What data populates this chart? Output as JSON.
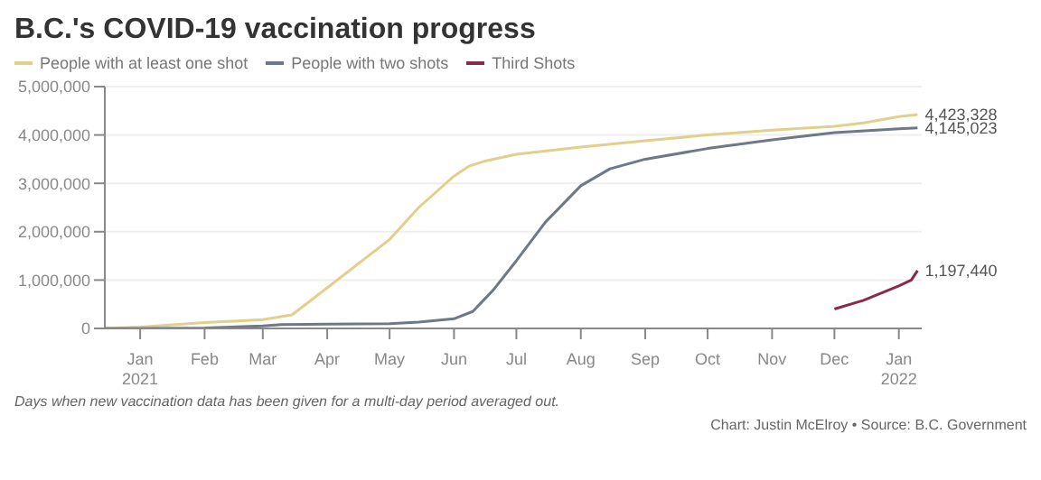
{
  "chart_data": {
    "type": "line",
    "title": "B.C.'s COVID-19 vaccination progress",
    "legend": "top left",
    "grid": "y",
    "marker": "none",
    "line_style": "solid",
    "xlim": [
      "2020-12-15",
      "2022-01-12"
    ],
    "xticks": [
      {
        "value": "2021-01-01",
        "label": "Jan\n2021"
      },
      {
        "value": "2021-02-01",
        "label": "Feb"
      },
      {
        "value": "2021-03-01",
        "label": "Mar"
      },
      {
        "value": "2021-04-01",
        "label": "Apr"
      },
      {
        "value": "2021-05-01",
        "label": "May"
      },
      {
        "value": "2021-06-01",
        "label": "Jun"
      },
      {
        "value": "2021-07-01",
        "label": "Jul"
      },
      {
        "value": "2021-08-01",
        "label": "Aug"
      },
      {
        "value": "2021-09-01",
        "label": "Sep"
      },
      {
        "value": "2021-10-01",
        "label": "Oct"
      },
      {
        "value": "2021-11-01",
        "label": "Nov"
      },
      {
        "value": "2021-12-01",
        "label": "Dec"
      },
      {
        "value": "2022-01-01",
        "label": "Jan\n2022"
      }
    ],
    "ylim": [
      0,
      5000000
    ],
    "yticks": [
      0,
      {
        "value": 1000000,
        "label": "1,000,000"
      },
      {
        "value": 2000000,
        "label": "2,000,000"
      },
      {
        "value": 3000000,
        "label": "3,000,000"
      },
      {
        "value": 4000000,
        "label": "4,000,000"
      },
      {
        "value": 5000000,
        "label": "5,000,000"
      }
    ],
    "series": [
      {
        "name": "People with at least one shot",
        "color": "#e3cf8c",
        "x": [
          "2020-12-15",
          "2021-01-01",
          "2021-02-01",
          "2021-03-01",
          "2021-03-15",
          "2021-04-01",
          "2021-05-01",
          "2021-05-15",
          "2021-06-01",
          "2021-06-08",
          "2021-06-15",
          "2021-07-01",
          "2021-08-01",
          "2021-09-01",
          "2021-10-01",
          "2021-11-01",
          "2021-12-01",
          "2021-12-15",
          "2022-01-01",
          "2022-01-10"
        ],
        "values": [
          0,
          30000,
          120000,
          180000,
          280000,
          840000,
          1840000,
          2500000,
          3150000,
          3350000,
          3450000,
          3600000,
          3750000,
          3880000,
          4000000,
          4100000,
          4180000,
          4250000,
          4380000,
          4423328
        ],
        "value_labels": [
          null,
          null,
          null,
          null,
          null,
          null,
          null,
          null,
          null,
          null,
          null,
          null,
          null,
          null,
          null,
          null,
          null,
          null,
          null,
          "4,423,328"
        ]
      },
      {
        "name": "People with two shots",
        "color": "#6f7886",
        "x": [
          "2020-12-15",
          "2021-01-01",
          "2021-02-01",
          "2021-03-01",
          "2021-03-10",
          "2021-04-01",
          "2021-05-01",
          "2021-05-15",
          "2021-06-01",
          "2021-06-10",
          "2021-06-20",
          "2021-07-01",
          "2021-07-15",
          "2021-08-01",
          "2021-08-15",
          "2021-09-01",
          "2021-10-01",
          "2021-11-01",
          "2021-12-01",
          "2022-01-01",
          "2022-01-10"
        ],
        "values": [
          0,
          0,
          10000,
          50000,
          80000,
          90000,
          100000,
          130000,
          200000,
          350000,
          800000,
          1400000,
          2200000,
          2950000,
          3300000,
          3500000,
          3720000,
          3900000,
          4050000,
          4130000,
          4145023
        ],
        "value_labels": [
          null,
          null,
          null,
          null,
          null,
          null,
          null,
          null,
          null,
          null,
          null,
          null,
          null,
          null,
          null,
          null,
          null,
          null,
          null,
          null,
          "4,145,023"
        ]
      },
      {
        "name": "Third Shots",
        "color": "#8a2a4a",
        "x": [
          "2021-12-01",
          "2021-12-15",
          "2022-01-01",
          "2022-01-07",
          "2022-01-10"
        ],
        "values": [
          400000,
          580000,
          880000,
          1000000,
          1197440
        ],
        "value_labels": [
          null,
          null,
          null,
          null,
          "1,197,440"
        ]
      }
    ],
    "annotations": [
      "Days when new vaccination data has been given for a multi-day period averaged out.",
      "Chart: Justin McElroy • Source: B.C. Government"
    ]
  }
}
